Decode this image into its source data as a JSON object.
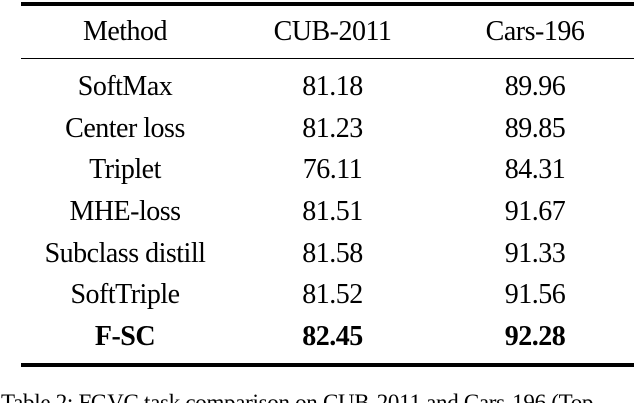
{
  "table": {
    "columns": [
      "Method",
      "CUB-2011",
      "Cars-196"
    ],
    "rows": [
      {
        "method": "SoftMax",
        "cub": "81.18",
        "cars": "89.96",
        "bold": false
      },
      {
        "method": "Center loss",
        "cub": "81.23",
        "cars": "89.85",
        "bold": false
      },
      {
        "method": "Triplet",
        "cub": "76.11",
        "cars": "84.31",
        "bold": false
      },
      {
        "method": "MHE-loss",
        "cub": "81.51",
        "cars": "91.67",
        "bold": false
      },
      {
        "method": "Subclass distill",
        "cub": "81.58",
        "cars": "91.33",
        "bold": false
      },
      {
        "method": "SoftTriple",
        "cub": "81.52",
        "cars": "91.56",
        "bold": false
      },
      {
        "method": "F-SC",
        "cub": "82.45",
        "cars": "92.28",
        "bold": true
      }
    ]
  },
  "caption": {
    "text": "Table 2: FGVC task comparison on CUB-2011 and Cars-196 (Top"
  },
  "colors": {
    "text": "#000000",
    "rule": "#000000",
    "background": "#ffffff"
  }
}
